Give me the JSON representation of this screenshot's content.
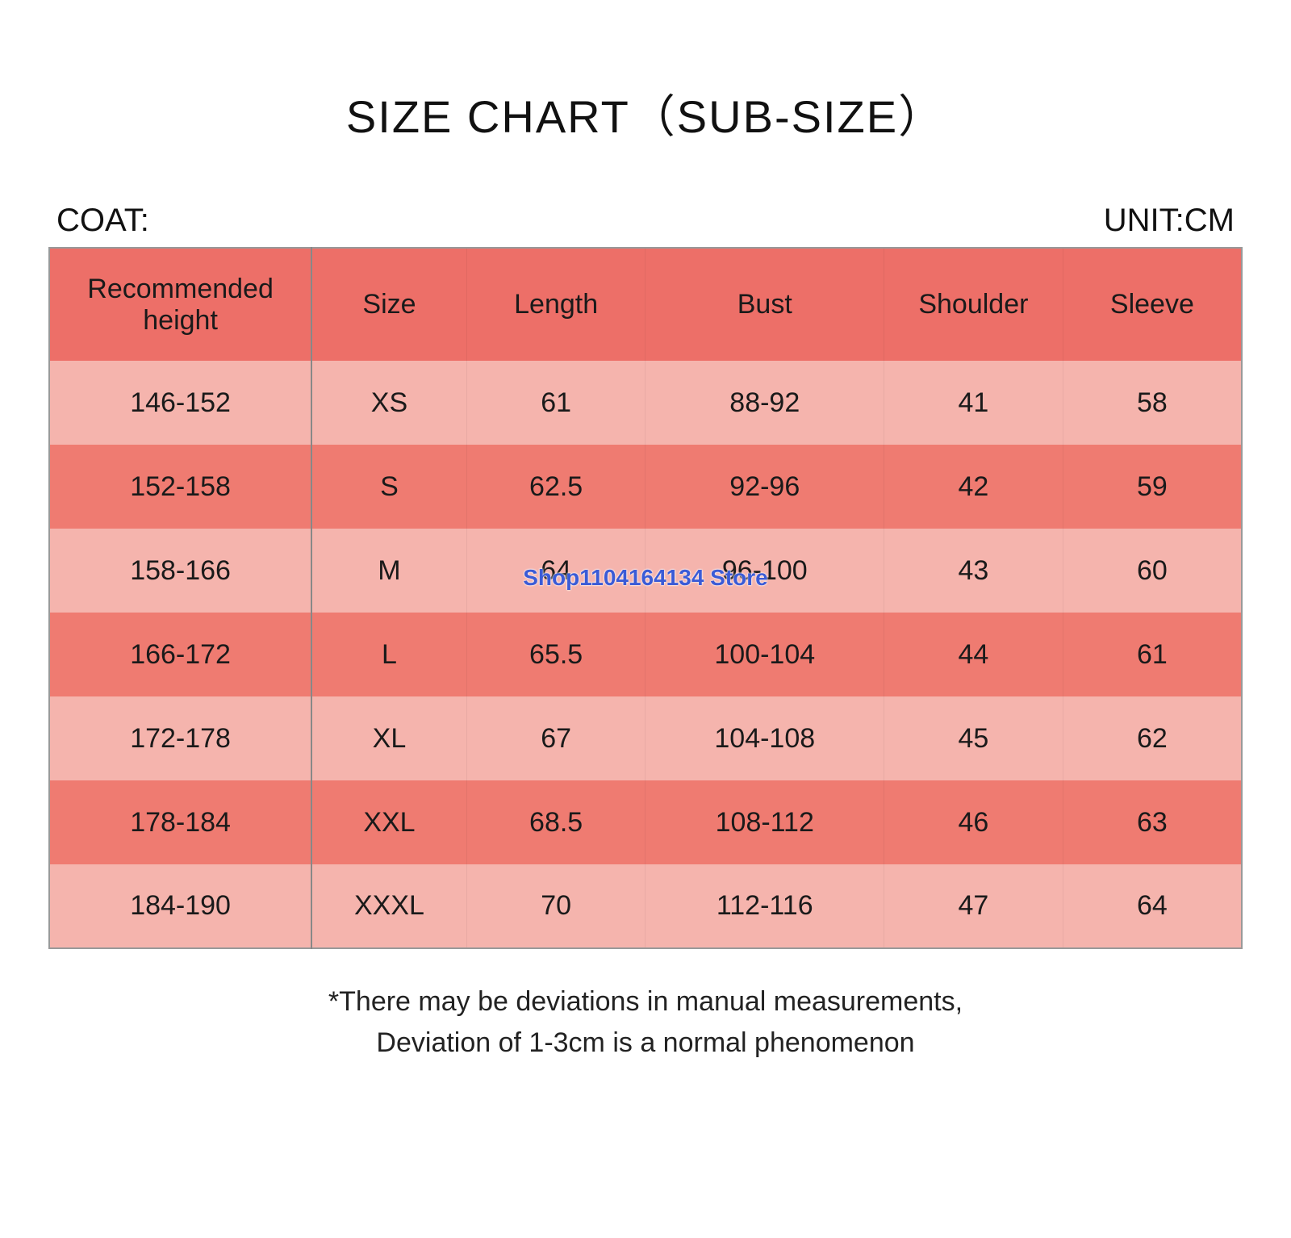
{
  "title": "SIZE CHART（SUB-SIZE）",
  "left_label": "COAT:",
  "right_label": "UNIT:CM",
  "watermark": "Shop1104164134 Store",
  "note_line1": "*There may be deviations in manual measurements,",
  "note_line2": "Deviation of 1-3cm is a normal phenomenon",
  "table": {
    "header_bg": "#ed6f68",
    "row_alt_bg_light": "#f5b4ad",
    "row_alt_bg_dark": "#ef7b71",
    "text_color": "#1a1a1a",
    "columns": [
      "Recommended height",
      "Size",
      "Length",
      "Bust",
      "Shoulder",
      "Sleeve"
    ],
    "col_widths_pct": [
      22,
      13,
      15,
      20,
      15,
      15
    ],
    "rows": [
      [
        "146-152",
        "XS",
        "61",
        "88-92",
        "41",
        "58"
      ],
      [
        "152-158",
        "S",
        "62.5",
        "92-96",
        "42",
        "59"
      ],
      [
        "158-166",
        "M",
        "64",
        "96-100",
        "43",
        "60"
      ],
      [
        "166-172",
        "L",
        "65.5",
        "100-104",
        "44",
        "61"
      ],
      [
        "172-178",
        "XL",
        "67",
        "104-108",
        "45",
        "62"
      ],
      [
        "178-184",
        "XXL",
        "68.5",
        "108-112",
        "46",
        "63"
      ],
      [
        "184-190",
        "XXXL",
        "70",
        "112-116",
        "47",
        "64"
      ]
    ]
  }
}
